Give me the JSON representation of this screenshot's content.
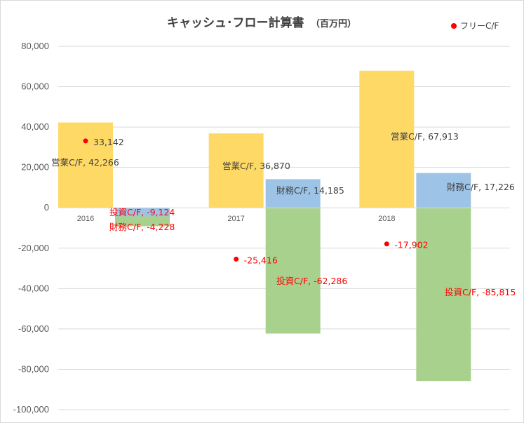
{
  "chart_data": {
    "type": "bar",
    "title": "キャッシュ･フロー計算書",
    "title_unit": "（百万円）",
    "categories": [
      "2016",
      "2017",
      "2018"
    ],
    "ylim": [
      -100000,
      80000
    ],
    "yticks": [
      80000,
      60000,
      40000,
      20000,
      0,
      -20000,
      -40000,
      -60000,
      -80000,
      -100000
    ],
    "ytick_labels": [
      "80,000",
      "60,000",
      "40,000",
      "20,000",
      "0",
      "-20,000",
      "-40,000",
      "-60,000",
      "-80,000",
      "-100,000"
    ],
    "grid": true,
    "series": [
      {
        "name": "営業C/F",
        "color": "#ffd966",
        "values": [
          42266,
          36870,
          67913
        ],
        "labels": [
          "営業C/F, 42,266",
          "営業C/F, 36,870",
          "営業C/F, 67,913"
        ]
      },
      {
        "name": "投資C/F",
        "color": "#a9d18e",
        "values": [
          -9124,
          -62286,
          -85815
        ],
        "labels": [
          "投資C/F, -9,124",
          "投資C/F, -62,286",
          "投資C/F, -85,815"
        ]
      },
      {
        "name": "財務C/F",
        "color": "#9dc3e6",
        "values": [
          -4228,
          14185,
          17226
        ],
        "labels": [
          "財務C/F, -4,228",
          "財務C/F, 14,185",
          "財務C/F, 17,226"
        ]
      }
    ],
    "free_cf": {
      "name": "フリーC/F",
      "color": "#ff0000",
      "values": [
        33142,
        -25416,
        -17902
      ],
      "labels": [
        "33,142",
        "-25,416",
        "-17,902"
      ]
    },
    "legend": {
      "position": "top-right",
      "entries": [
        "フリーC/F"
      ]
    }
  }
}
